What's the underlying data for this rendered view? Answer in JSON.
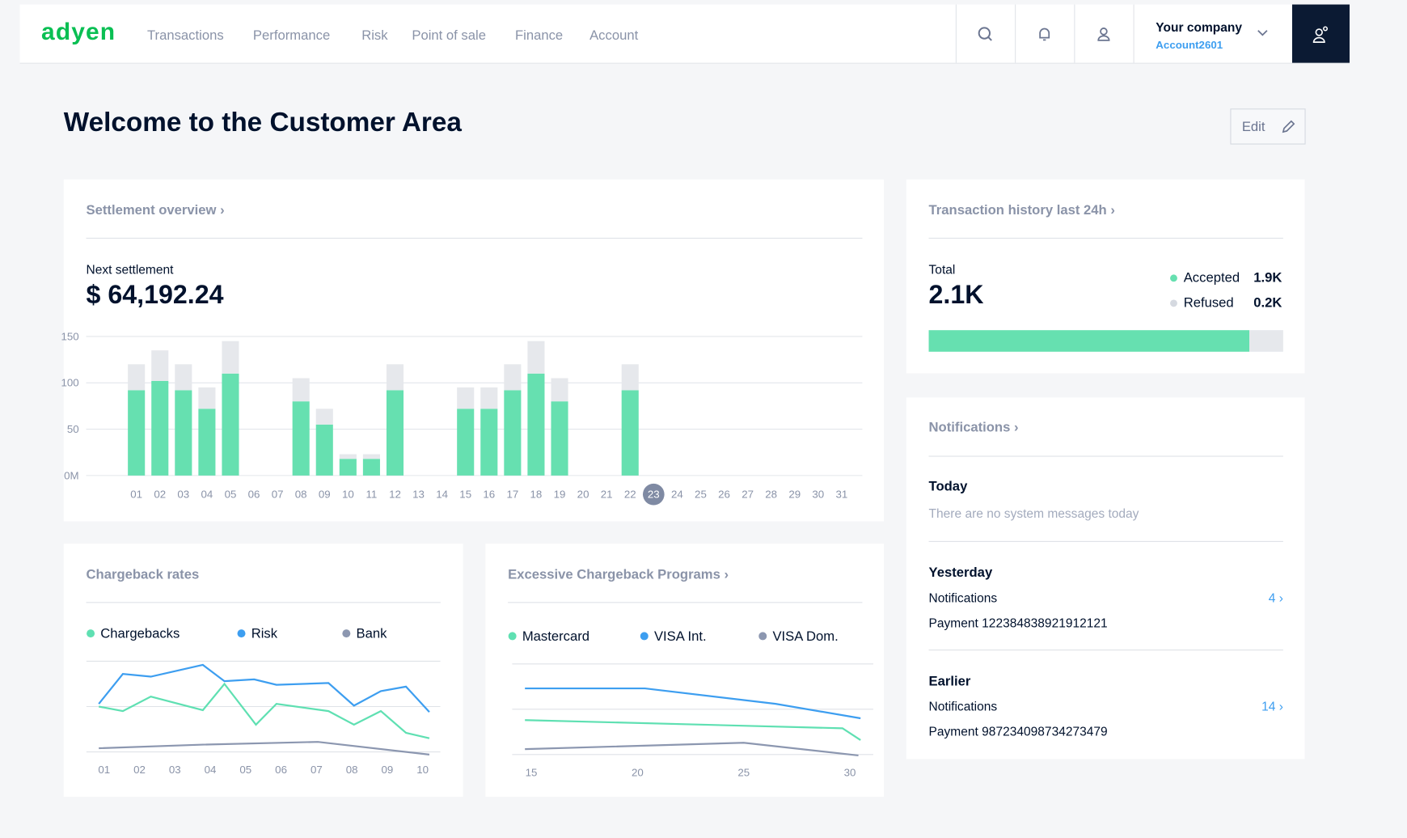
{
  "nav": {
    "logo": "adyen",
    "items": [
      "Transactions",
      "Performance",
      "Risk",
      "Point of sale",
      "Finance",
      "Account"
    ],
    "company": "Your company",
    "account": "Account2601"
  },
  "page_title": "Welcome to the Customer Area",
  "edit": "Edit",
  "settlement": {
    "title": "Settlement overview ›",
    "label": "Next settlement",
    "amount": "$ 64,192.24",
    "chart_data": {
      "type": "bar",
      "stacked": true,
      "categories": [
        "01",
        "02",
        "03",
        "04",
        "05",
        "06",
        "07",
        "08",
        "09",
        "10",
        "11",
        "12",
        "13",
        "14",
        "15",
        "16",
        "17",
        "18",
        "19",
        "20",
        "21",
        "22",
        "23",
        "24",
        "25",
        "26",
        "27",
        "28",
        "29",
        "30",
        "31"
      ],
      "highlight_category": "23",
      "series": [
        {
          "color": "#66e0b0",
          "values": [
            92,
            102,
            92,
            72,
            110,
            null,
            null,
            80,
            55,
            18,
            18,
            92,
            null,
            null,
            72,
            72,
            92,
            110,
            80,
            null,
            null,
            92,
            null,
            null,
            null,
            null,
            null,
            null,
            null,
            null,
            null
          ]
        },
        {
          "color": "#e6e8ec",
          "values": [
            28,
            33,
            28,
            23,
            35,
            null,
            null,
            25,
            17,
            5,
            5,
            28,
            null,
            null,
            23,
            23,
            28,
            35,
            25,
            null,
            null,
            28,
            null,
            null,
            null,
            null,
            null,
            null,
            null,
            null,
            null
          ]
        }
      ],
      "ylim": [
        0,
        150
      ],
      "yticks": [
        {
          "value": 0,
          "label": "0M"
        },
        50,
        100,
        150
      ],
      "grid": true
    }
  },
  "transactions": {
    "title": "Transaction history last 24h ›",
    "total_label": "Total",
    "total": "2.1K",
    "chart_data": {
      "type": "progress",
      "categories": [
        "Accepted",
        "Refused"
      ],
      "values": [
        1900,
        200
      ],
      "value_labels": [
        "1.9K",
        "0.2K"
      ],
      "colors": [
        "#66e0b0",
        "#e6e8ec"
      ],
      "legend_colors": [
        "#66e0b0",
        "#d5d9e0"
      ]
    }
  },
  "notifications": {
    "title": "Notifications ›",
    "sections": [
      {
        "heading": "Today",
        "message": "There are no system messages today"
      },
      {
        "heading": "Yesterday",
        "label": "Notifications",
        "count": "4 ›",
        "detail": "Payment 122384838921912121"
      },
      {
        "heading": "Earlier",
        "label": "Notifications",
        "count": "14 ›",
        "detail": "Payment 987234098734273479"
      }
    ]
  },
  "chargeback": {
    "title": "Chargeback rates",
    "chart_data": {
      "type": "line",
      "series": [
        {
          "name": "Chargebacks",
          "color": "#5fe0b2",
          "x": [
            0.85,
            1.53,
            2.32,
            3.79,
            4.4,
            5.29,
            5.87,
            7.34,
            8.06,
            8.82,
            9.53,
            10.19
          ],
          "values": [
            50,
            45,
            61,
            46,
            75,
            30,
            53,
            45,
            30,
            45,
            21,
            15
          ]
        },
        {
          "name": "Risk",
          "color": "#3d9ef0",
          "x": [
            0.85,
            1.53,
            2.32,
            3.79,
            4.4,
            5.24,
            5.87,
            7.34,
            8.06,
            8.82,
            9.53,
            10.19
          ],
          "values": [
            53,
            86,
            83,
            96,
            78,
            80,
            74,
            76,
            51,
            67,
            72,
            44
          ]
        },
        {
          "name": "Bank",
          "color": "#8c97b0",
          "x": [
            0.85,
            3.79,
            7.04,
            10.19
          ],
          "values": [
            4,
            8,
            11,
            -3
          ]
        }
      ],
      "xlim": [
        0.5,
        10.5
      ],
      "xticks": [
        {
          "value": 1,
          "label": "01"
        },
        {
          "value": 2,
          "label": "02"
        },
        {
          "value": 3,
          "label": "03"
        },
        {
          "value": 4,
          "label": "04"
        },
        {
          "value": 5,
          "label": "05"
        },
        {
          "value": 6,
          "label": "06"
        },
        {
          "value": 7,
          "label": "07"
        },
        {
          "value": 8,
          "label": "08"
        },
        {
          "value": 9,
          "label": "09"
        },
        10
      ],
      "ylim": [
        0,
        100
      ],
      "yticks": [
        0,
        50,
        100
      ],
      "grid": true
    }
  },
  "excessive": {
    "title": "Excessive Chargeback Programs ›",
    "chart_data": {
      "type": "line",
      "series": [
        {
          "name": "Mastercard",
          "color": "#5fe0b2",
          "x": [
            14.7,
            29.65,
            30.5
          ],
          "values": [
            38,
            29,
            16
          ]
        },
        {
          "name": "VISA Int.",
          "color": "#3d9ef0",
          "x": [
            14.7,
            20.35,
            26.5,
            30.5
          ],
          "values": [
            73,
            73,
            56,
            40
          ]
        },
        {
          "name": "VISA Dom.",
          "color": "#8c97b0",
          "x": [
            14.7,
            25,
            30.4
          ],
          "values": [
            6,
            13,
            -1
          ]
        }
      ],
      "xlim": [
        14.1,
        31.1
      ],
      "xticks": [
        15,
        20,
        25,
        30
      ],
      "ylim": [
        0,
        100
      ],
      "yticks": [
        0,
        50,
        100
      ],
      "grid": true
    }
  }
}
